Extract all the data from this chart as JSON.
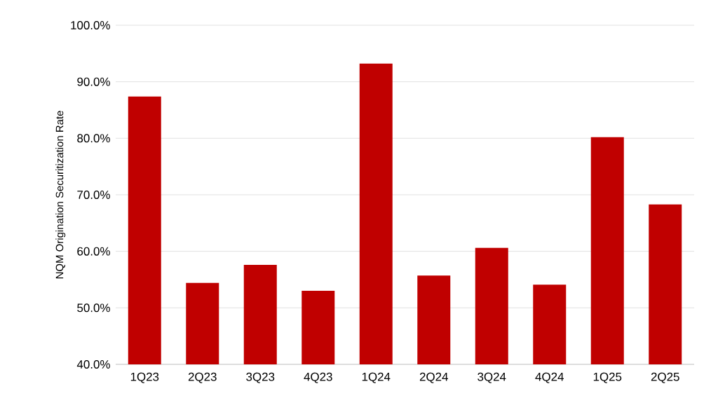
{
  "chart_data": {
    "type": "bar",
    "ylabel": "NQM Origination Securitization Rate",
    "categories": [
      "1Q23",
      "2Q23",
      "3Q23",
      "4Q23",
      "1Q24",
      "2Q24",
      "3Q24",
      "4Q24",
      "1Q25",
      "2Q25"
    ],
    "values": [
      87.4,
      54.4,
      57.6,
      53.0,
      93.2,
      55.7,
      60.6,
      54.1,
      80.2,
      68.3
    ],
    "color": "#c00000",
    "ylim": [
      40,
      100
    ],
    "yticks": [
      {
        "value": 40,
        "label": "40.0%"
      },
      {
        "value": 50,
        "label": "50.0%"
      },
      {
        "value": 60,
        "label": "60.0%"
      },
      {
        "value": 70,
        "label": "70.0%"
      },
      {
        "value": 80,
        "label": "80.0%"
      },
      {
        "value": 90,
        "label": "90.0%"
      },
      {
        "value": 100,
        "label": "100.0%"
      }
    ],
    "grid": "y"
  }
}
